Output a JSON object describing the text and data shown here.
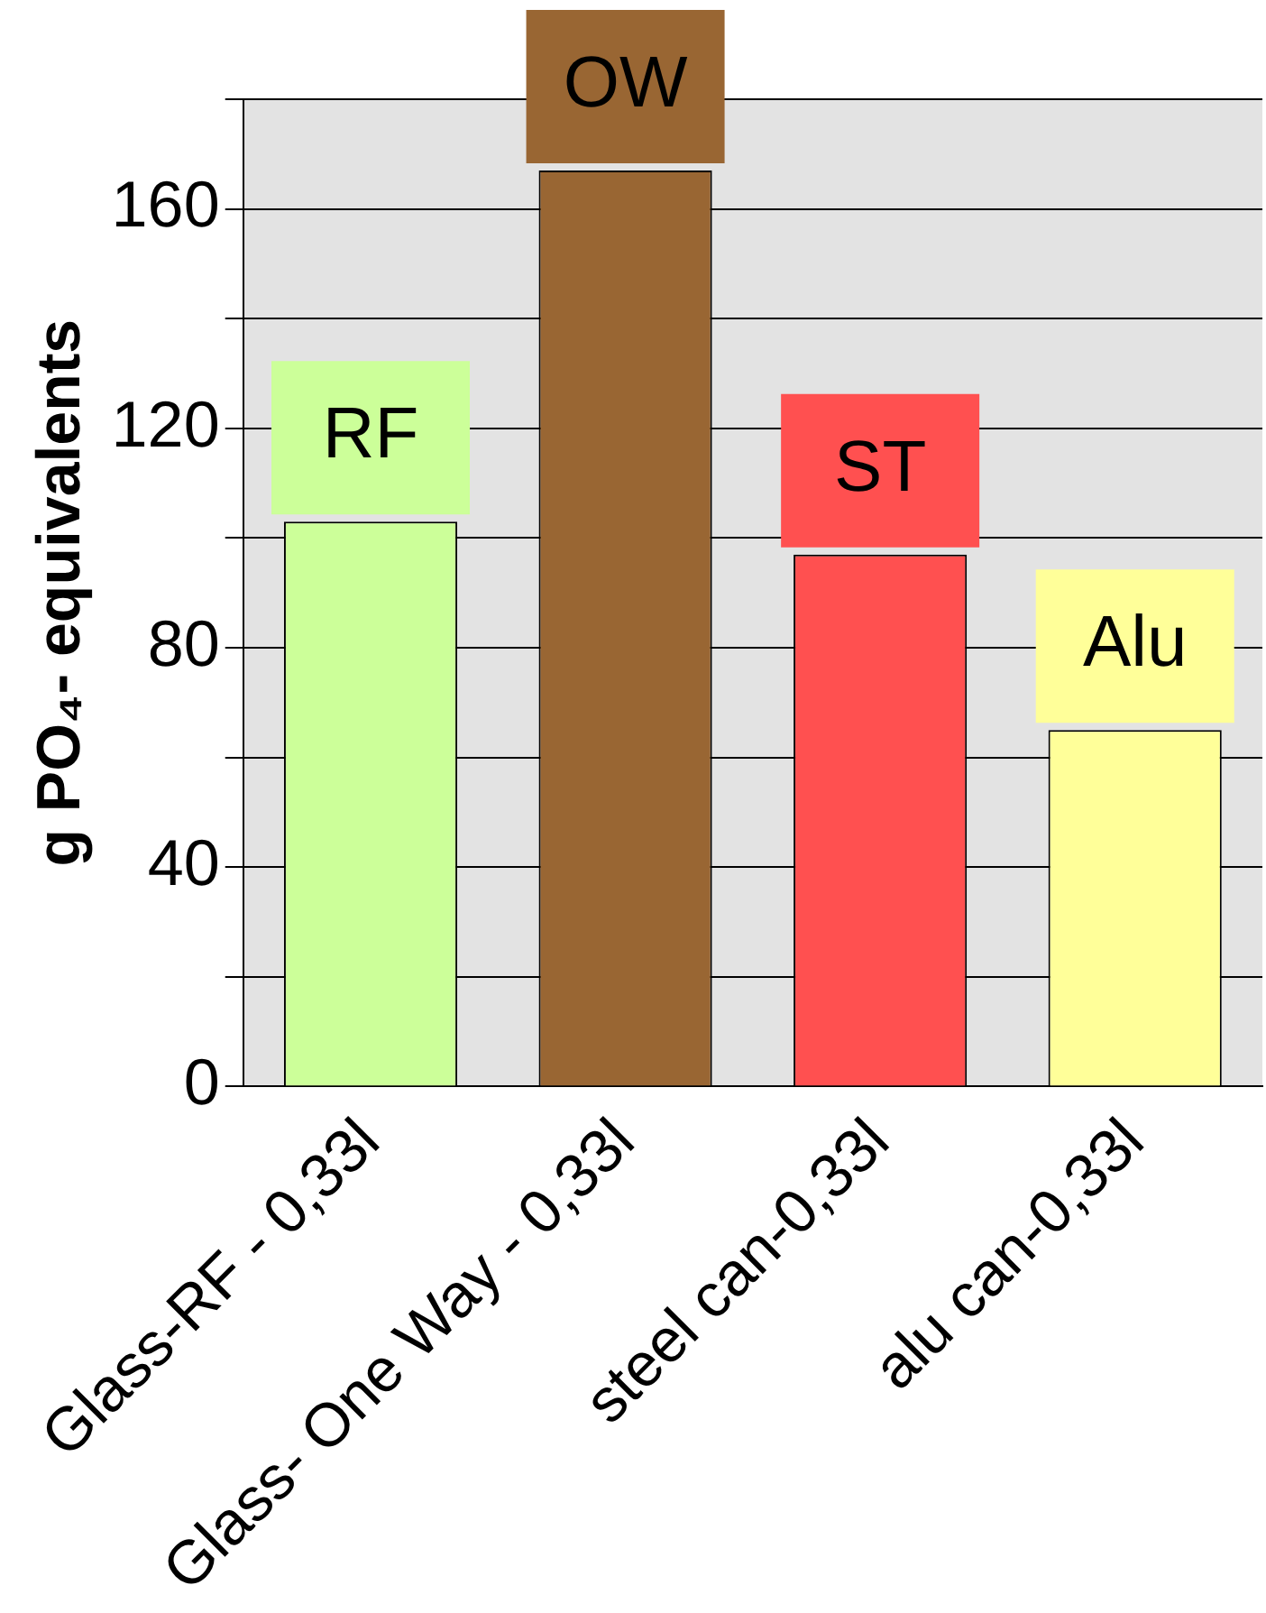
{
  "chart_data": {
    "type": "bar",
    "ylabel": "g PO₄- equivalents",
    "categories": [
      "Glass-RF - 0,33l",
      "Glass- One Way - 0,33l",
      "steel can-0,33l",
      "alu can-0,33l"
    ],
    "values": [
      103,
      167,
      97,
      65
    ],
    "colors": [
      "#ccff99",
      "#996633",
      "#ff5050",
      "#ffff99"
    ],
    "ylim": [
      0,
      180
    ],
    "yticks": [
      0,
      {
        "value": 20,
        "label": null
      },
      40,
      {
        "value": 60,
        "label": null
      },
      80,
      {
        "value": 100,
        "label": null
      },
      120,
      {
        "value": 140,
        "label": null
      },
      160,
      {
        "value": 180,
        "label": null
      }
    ],
    "grid": "y",
    "legend": false,
    "annotations": [
      "RF",
      "OW",
      "ST",
      "Alu"
    ]
  }
}
